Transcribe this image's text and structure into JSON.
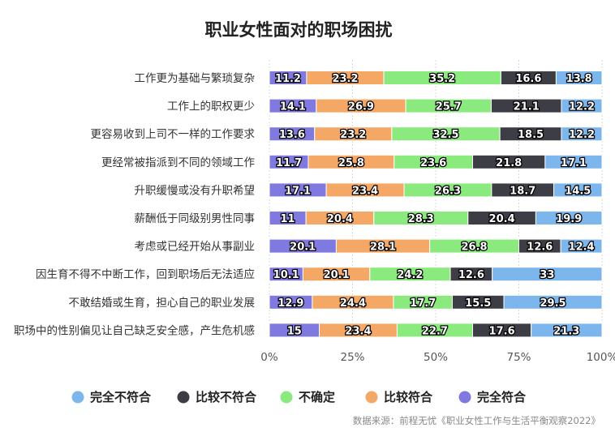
{
  "chart_data": {
    "type": "bar",
    "orientation": "horizontal",
    "stacked": true,
    "title": "职业女性面对的职场困扰",
    "xlim": [
      0,
      100
    ],
    "x_ticks": [
      "0%",
      "25%",
      "50%",
      "75%",
      "100%"
    ],
    "grid": true,
    "legend_position": "bottom",
    "categories": [
      "工作更为基础与繁琐复杂",
      "工作上的职权更少",
      "更容易收到上司不一样的工作要求",
      "更经常被指派到不同的领域工作",
      "升职缓慢或没有升职希望",
      "薪酬低于同级别男性同事",
      "考虑或已经开始从事副业",
      "因生育不得不中断工作，回到职场后无法适应",
      "不敢结婚或生育，担心自己的职业发展",
      "职场中的性别偏见让自己缺乏安全感，产生危机感"
    ],
    "series": [
      {
        "name": "完全符合",
        "color": "#7f79e0",
        "values": [
          11.2,
          14.1,
          13.6,
          11.7,
          17.1,
          11,
          20.1,
          10.1,
          12.9,
          15
        ]
      },
      {
        "name": "比较符合",
        "color": "#f5a865",
        "values": [
          23.2,
          26.9,
          23.2,
          25.8,
          23.4,
          20.4,
          28.1,
          20.1,
          24.4,
          23.4
        ]
      },
      {
        "name": "不确定",
        "color": "#8bea7d",
        "values": [
          35.2,
          25.7,
          32.5,
          23.6,
          26.3,
          28.3,
          26.8,
          24.2,
          17.7,
          22.7
        ]
      },
      {
        "name": "比较不符合",
        "color": "#3d3d45",
        "values": [
          16.6,
          21.1,
          18.5,
          21.8,
          18.7,
          20.4,
          12.6,
          12.6,
          15.5,
          17.6
        ]
      },
      {
        "name": "完全不符合",
        "color": "#7db6ec",
        "values": [
          13.8,
          12.2,
          12.2,
          17.1,
          14.5,
          19.9,
          12.4,
          33,
          29.5,
          21.3
        ]
      }
    ],
    "legend_order": [
      "完全不符合",
      "比较不符合",
      "不确定",
      "比较符合",
      "完全符合"
    ],
    "source_note": "数据来源：前程无忧《职业女性工作与生活平衡观察2022》"
  }
}
